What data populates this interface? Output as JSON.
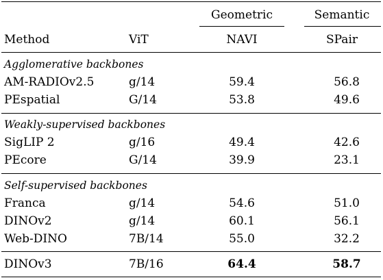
{
  "header": {
    "geometric": "Geometric",
    "semantic": "Semantic",
    "method": "Method",
    "vit": "ViT",
    "navi": "NAVI",
    "spair": "SPair"
  },
  "groups": [
    {
      "title": "Agglomerative backbones",
      "rows": [
        {
          "method": "AM-RADIOv2.5",
          "vit": "g/14",
          "navi": "59.4",
          "spair": "56.8"
        },
        {
          "method": "PEspatial",
          "vit": "G/14",
          "navi": "53.8",
          "spair": "49.6"
        }
      ]
    },
    {
      "title": "Weakly-supervised backbones",
      "rows": [
        {
          "method": "SigLIP 2",
          "vit": "g/16",
          "navi": "49.4",
          "spair": "42.6"
        },
        {
          "method": "PEcore",
          "vit": "G/14",
          "navi": "39.9",
          "spair": "23.1"
        }
      ]
    },
    {
      "title": "Self-supervised backbones",
      "rows": [
        {
          "method": "Franca",
          "vit": "g/14",
          "navi": "54.6",
          "spair": "51.0"
        },
        {
          "method": "DINOv2",
          "vit": "g/14",
          "navi": "60.1",
          "spair": "56.1"
        },
        {
          "method": "Web-DINO",
          "vit": "7B/14",
          "navi": "55.0",
          "spair": "32.2"
        }
      ]
    }
  ],
  "final_row": {
    "method": "DINOv3",
    "vit": "7B/16",
    "navi": "64.4",
    "spair": "58.7"
  }
}
